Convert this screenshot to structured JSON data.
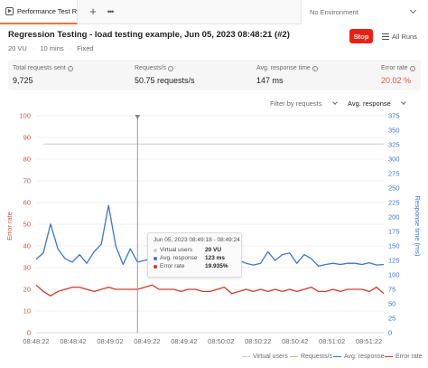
{
  "tabbar": {
    "tab_label": "Performance Test Runner",
    "plus_label": "+",
    "more_label": "•••",
    "environment": "No Environment"
  },
  "header": {
    "title": "Regression Testing - load testing example, Jun 05, 2023 08:48:21 (#2)",
    "virtual_users": "20 VU",
    "duration": "10 mins",
    "load_profile": "Fixed",
    "separator": "·",
    "stop_label": "Stop",
    "all_runs_label": "All Runs"
  },
  "metrics": [
    {
      "label": "Total requests sent",
      "value": "9,725"
    },
    {
      "label": "Requests/s",
      "value": "50.75 requests/s"
    },
    {
      "label": "Avg. response time",
      "value": "147 ms"
    },
    {
      "label": "Error rate",
      "value": "20.02 %"
    }
  ],
  "filters": {
    "filter_label": "Filter by requests",
    "metric_label": "Avg. response"
  },
  "tooltip": {
    "time": "Jun 05, 2023 08:49:18 - 08:49:24",
    "rows": [
      {
        "name": "Virtual users",
        "value": "20 VU",
        "color": "#d0d0d0"
      },
      {
        "name": "Avg. response",
        "value": "123 ms",
        "color": "#3a75d6"
      },
      {
        "name": "Error rate",
        "value": "19.935%",
        "color": "#d23a2b"
      }
    ]
  },
  "legend": [
    {
      "name": "Virtual users",
      "color": "#c8c8c8"
    },
    {
      "name": "Requests/s",
      "color": "#b7c97a"
    },
    {
      "name": "Avg. response",
      "color": "#3a75d6"
    },
    {
      "name": "Error rate",
      "color": "#d23a2b"
    }
  ],
  "colors": {
    "accent": "#ff6c37",
    "stop": "#eb2013",
    "error_text": "#e0564b",
    "left_axis": "#d4503f",
    "right_axis": "#3a75d6"
  },
  "chart_data": {
    "type": "line",
    "ylabel_left": "Error rate",
    "ylabel_right": "Response time (ms)",
    "y_left_ticks": [
      0,
      10,
      20,
      30,
      40,
      50,
      60,
      70,
      80,
      90,
      100
    ],
    "y_right_ticks": [
      0,
      25,
      50,
      75,
      100,
      125,
      150,
      175,
      200,
      225,
      250,
      275,
      300,
      325,
      350,
      375
    ],
    "ylim_left": [
      0,
      100
    ],
    "ylim_right": [
      0,
      375
    ],
    "x_ticks": [
      "08:48:22",
      "08:48:42",
      "08:49:02",
      "08:49:22",
      "08:49:42",
      "08:50:02",
      "08:50:22",
      "08:50:42",
      "08:51:02",
      "08:51:22"
    ],
    "x_index_range": [
      0,
      48
    ],
    "cursor_index": 14,
    "series": [
      {
        "name": "Virtual users",
        "axis": "left",
        "values": [
          null,
          87,
          87,
          87,
          87,
          87,
          87,
          87,
          87,
          87,
          87,
          87,
          87,
          87,
          87,
          87,
          87,
          87,
          87,
          87,
          87,
          87,
          87,
          87,
          87,
          87,
          87,
          87,
          87,
          87,
          87,
          87,
          87,
          87,
          87,
          87,
          87,
          87,
          87,
          87,
          87,
          87,
          87,
          87,
          87,
          87,
          87,
          87,
          87
        ]
      },
      {
        "name": "Avg. response",
        "axis": "right",
        "values": [
          127,
          138,
          188,
          145,
          128,
          122,
          135,
          120,
          140,
          153,
          220,
          150,
          118,
          145,
          122,
          125,
          128,
          120,
          115,
          118,
          120,
          115,
          145,
          130,
          127,
          125,
          118,
          148,
          125,
          120,
          117,
          120,
          140,
          125,
          135,
          138,
          120,
          135,
          128,
          115,
          118,
          120,
          118,
          120,
          120,
          118,
          121,
          117,
          118
        ]
      },
      {
        "name": "Error rate",
        "axis": "left",
        "values": [
          22,
          19,
          17,
          19,
          20,
          21,
          21,
          20,
          19,
          20,
          21,
          20,
          20,
          20,
          20,
          21,
          22,
          20,
          20,
          20,
          19,
          20,
          20,
          19,
          19,
          20,
          21,
          18,
          19,
          20,
          19,
          20,
          19,
          20,
          19,
          20,
          19,
          20,
          21,
          19,
          19,
          20,
          19,
          20,
          20,
          20,
          19,
          21,
          18
        ]
      }
    ]
  }
}
